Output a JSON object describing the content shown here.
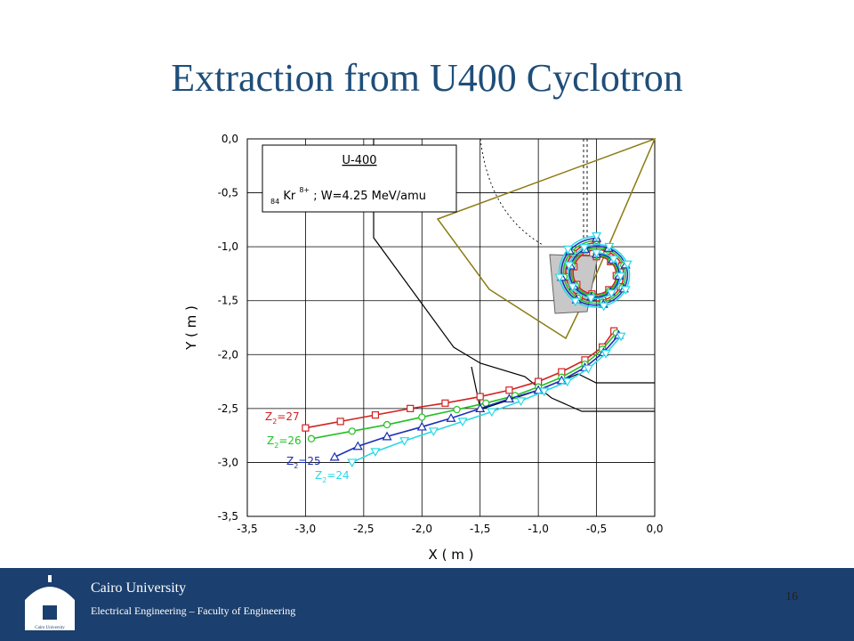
{
  "slide": {
    "title": "Extraction from U400 Cyclotron",
    "page_number": "16"
  },
  "footer": {
    "university": "Cairo University",
    "department": "Electrical Engineering – Faculty of Engineering",
    "logo_text": "Cairo University"
  },
  "chart_data": {
    "type": "line",
    "xlabel": "X ( m )",
    "ylabel": "Y ( m )",
    "xlim": [
      -3.5,
      0.0
    ],
    "ylim": [
      -3.5,
      0.0
    ],
    "x_ticks": [
      "-3,5",
      "-3,0",
      "-2,5",
      "-2,0",
      "-1,5",
      "-1,0",
      "-0,5",
      "0,0"
    ],
    "y_ticks": [
      "0,0",
      "-0,5",
      "-1,0",
      "-1,5",
      "-2,0",
      "-2,5",
      "-3,0",
      "-3,5"
    ],
    "grid": true,
    "legend": {
      "title": "U-400",
      "line": [
        "84",
        "Kr",
        "8+",
        "; W=4.25 MeV/amu"
      ]
    },
    "series": [
      {
        "name": "Z=27",
        "label_parts": [
          "Z",
          "2",
          "=27"
        ],
        "color": "#d42020",
        "marker": "square",
        "spiral_radius": 0.28,
        "x": [
          -3.0,
          -2.7,
          -2.4,
          -2.1,
          -1.8,
          -1.5,
          -1.25,
          -1.0,
          -0.8,
          -0.6,
          -0.45,
          -0.35
        ],
        "y": [
          -2.68,
          -2.62,
          -2.56,
          -2.5,
          -2.45,
          -2.39,
          -2.33,
          -2.25,
          -2.16,
          -2.05,
          -1.93,
          -1.78
        ]
      },
      {
        "name": "Z=26",
        "label_parts": [
          "Z",
          "2",
          "=26"
        ],
        "color": "#22c022",
        "marker": "circle",
        "spiral_radius": 0.3,
        "x": [
          -2.95,
          -2.6,
          -2.3,
          -2.0,
          -1.7,
          -1.45,
          -1.2,
          -1.0,
          -0.8,
          -0.6,
          -0.45,
          -0.33
        ],
        "y": [
          -2.78,
          -2.71,
          -2.65,
          -2.58,
          -2.51,
          -2.45,
          -2.38,
          -2.3,
          -2.21,
          -2.09,
          -1.95,
          -1.8
        ]
      },
      {
        "name": "Z=25",
        "label_parts": [
          "Z",
          "2",
          "=25"
        ],
        "color": "#1a2fb8",
        "marker": "triangle-up",
        "spiral_radius": 0.32,
        "x": [
          -2.75,
          -2.55,
          -2.3,
          -2.0,
          -1.75,
          -1.5,
          -1.25,
          -1.0,
          -0.8,
          -0.6,
          -0.44,
          -0.31
        ],
        "y": [
          -2.95,
          -2.85,
          -2.76,
          -2.67,
          -2.59,
          -2.5,
          -2.41,
          -2.33,
          -2.24,
          -2.12,
          -1.98,
          -1.82
        ]
      },
      {
        "name": "Z=24",
        "label_parts": [
          "Z",
          "2",
          "=24"
        ],
        "color": "#2ad8e8",
        "marker": "triangle-down",
        "spiral_radius": 0.34,
        "x": [
          -2.6,
          -2.4,
          -2.15,
          -1.9,
          -1.65,
          -1.4,
          -1.15,
          -0.95,
          -0.75,
          -0.57,
          -0.42,
          -0.29
        ],
        "y": [
          -3.0,
          -2.9,
          -2.8,
          -2.71,
          -2.62,
          -2.53,
          -2.43,
          -2.34,
          -2.25,
          -2.13,
          -1.99,
          -1.83
        ]
      }
    ]
  }
}
